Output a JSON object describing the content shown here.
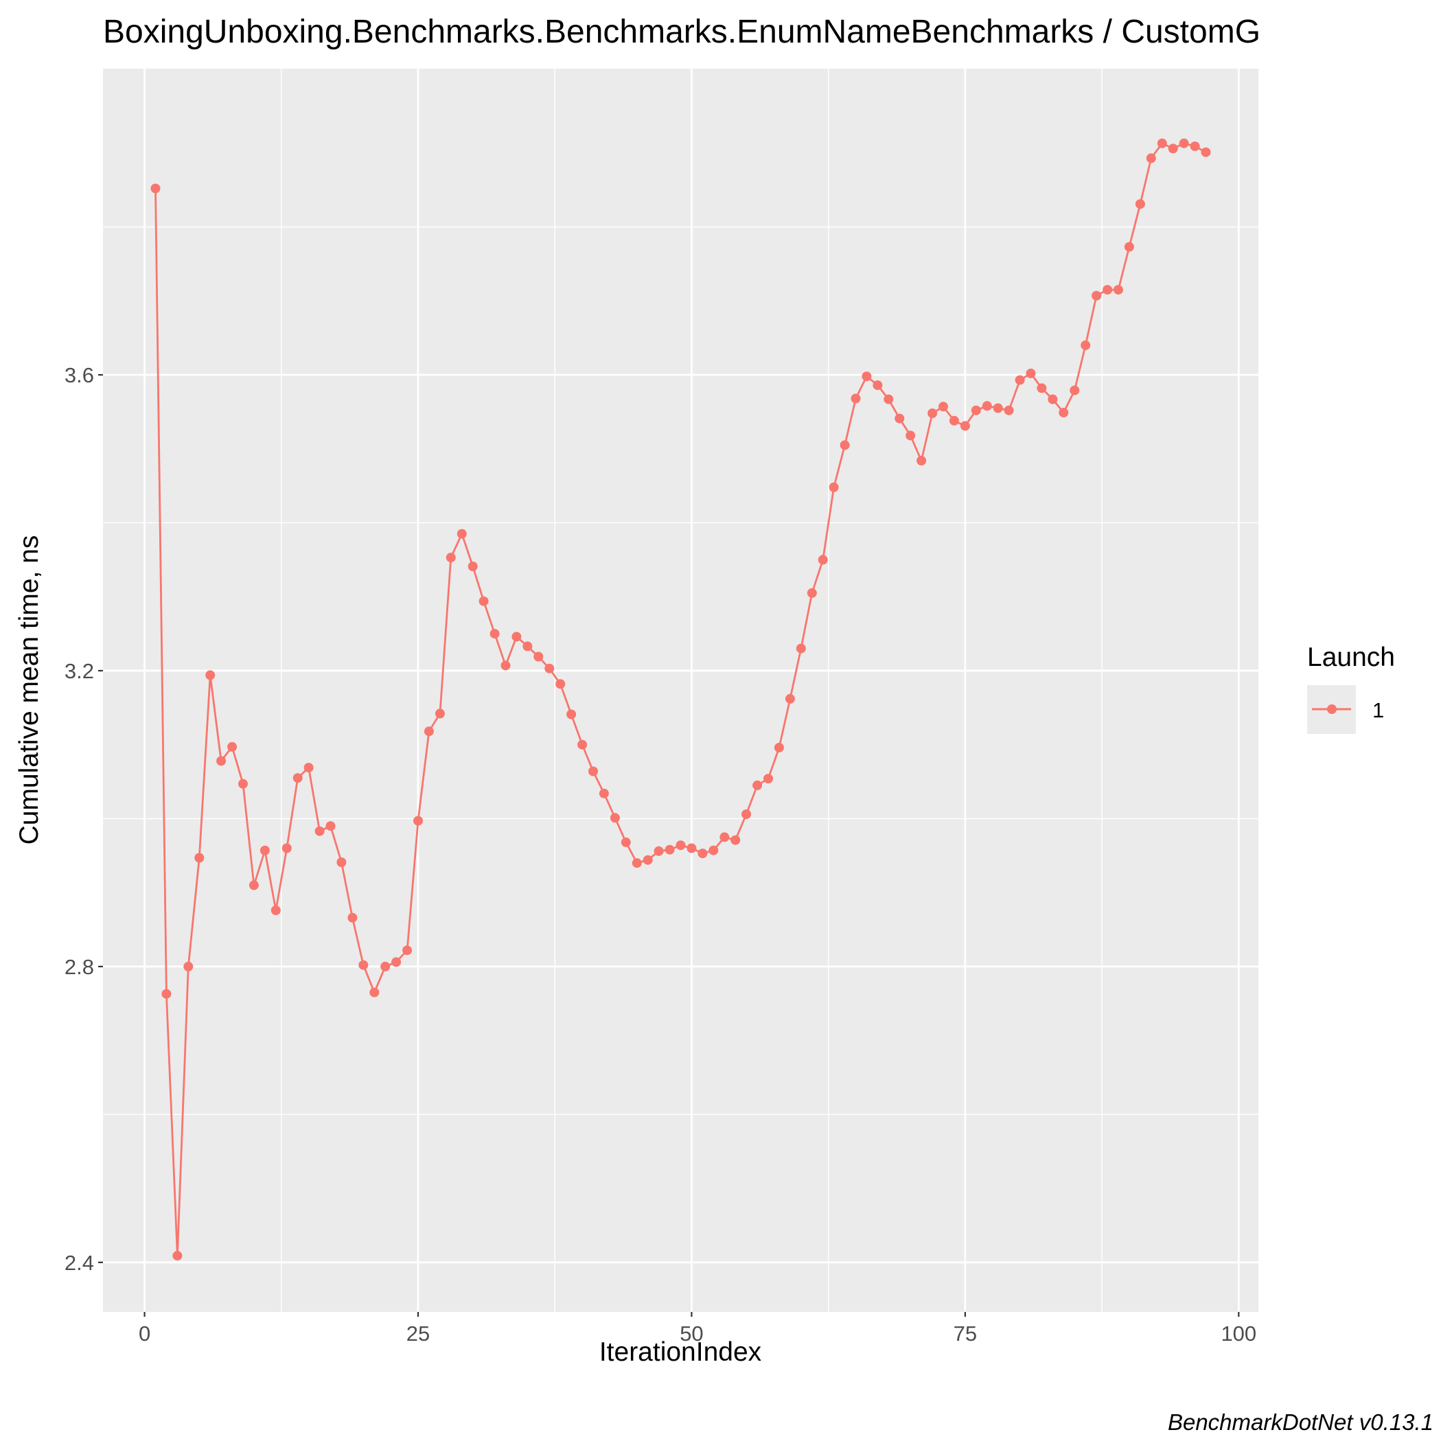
{
  "chart_data": {
    "type": "line",
    "title": "BoxingUnboxing.Benchmarks.Benchmarks.EnumNameBenchmarks / CustomG",
    "xlabel": "IterationIndex",
    "ylabel": "Cumulative mean time, ns",
    "xlim": [
      -3.8,
      101.8
    ],
    "ylim": [
      2.333,
      4.014
    ],
    "x_ticks": [
      0,
      25,
      50,
      75,
      100
    ],
    "x_tick_labels": [
      "0",
      "25",
      "50",
      "75",
      "100"
    ],
    "y_ticks": [
      2.4,
      2.8,
      3.2,
      3.6
    ],
    "y_tick_labels": [
      "2.4",
      "2.8",
      "3.2",
      "3.6"
    ],
    "grid": true,
    "legend": {
      "title": "Launch",
      "position": "right",
      "entries": [
        "1"
      ]
    },
    "caption": "BenchmarkDotNet v0.13.1",
    "series": [
      {
        "name": "1",
        "color": "#F8766D",
        "x": [
          1,
          2,
          3,
          4,
          5,
          6,
          7,
          8,
          9,
          10,
          11,
          12,
          13,
          14,
          15,
          16,
          17,
          18,
          19,
          20,
          21,
          22,
          23,
          24,
          25,
          26,
          27,
          28,
          29,
          30,
          31,
          32,
          33,
          34,
          35,
          36,
          37,
          38,
          39,
          40,
          41,
          42,
          43,
          44,
          45,
          46,
          47,
          48,
          49,
          50,
          51,
          52,
          53,
          54,
          55,
          56,
          57,
          58,
          59,
          60,
          61,
          62,
          63,
          64,
          65,
          66,
          67,
          68,
          69,
          70,
          71,
          72,
          73,
          74,
          75,
          76,
          77,
          78,
          79,
          80,
          81,
          82,
          83,
          84,
          85,
          86,
          87,
          88,
          89,
          90,
          91,
          92,
          93,
          94,
          95,
          96,
          97
        ],
        "values": [
          3.852,
          2.763,
          2.409,
          2.8,
          2.947,
          3.194,
          3.078,
          3.097,
          3.047,
          2.91,
          2.957,
          2.876,
          2.96,
          3.055,
          3.069,
          2.983,
          2.99,
          2.941,
          2.866,
          2.802,
          2.765,
          2.8,
          2.806,
          2.822,
          2.997,
          3.118,
          3.142,
          3.353,
          3.385,
          3.341,
          3.294,
          3.25,
          3.207,
          3.246,
          3.233,
          3.219,
          3.203,
          3.182,
          3.141,
          3.1,
          3.064,
          3.034,
          3.001,
          2.968,
          2.94,
          2.944,
          2.956,
          2.958,
          2.964,
          2.96,
          2.953,
          2.957,
          2.975,
          2.971,
          3.006,
          3.045,
          3.054,
          3.096,
          3.162,
          3.23,
          3.305,
          3.35,
          3.448,
          3.505,
          3.568,
          3.598,
          3.586,
          3.567,
          3.541,
          3.518,
          3.484,
          3.548,
          3.557,
          3.538,
          3.531,
          3.552,
          3.558,
          3.555,
          3.552,
          3.593,
          3.602,
          3.582,
          3.567,
          3.549,
          3.579,
          3.64,
          3.707,
          3.715,
          3.715,
          3.773,
          3.831,
          3.893,
          3.913,
          3.906,
          3.913,
          3.909,
          3.901
        ]
      }
    ]
  }
}
